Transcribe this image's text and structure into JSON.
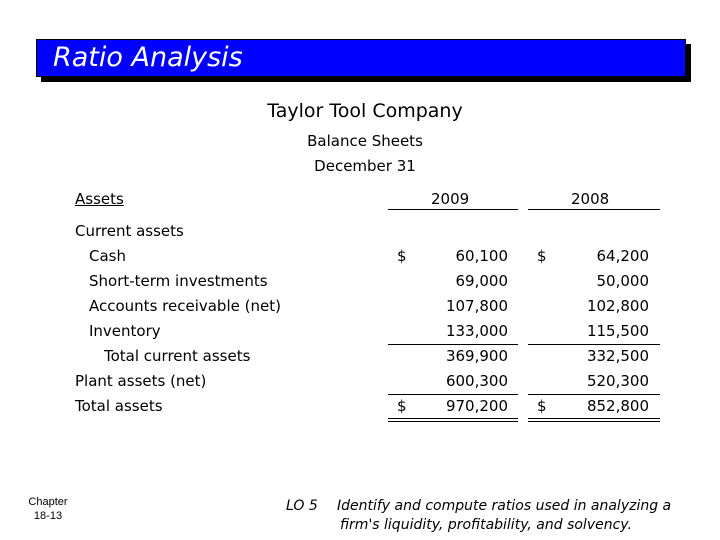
{
  "banner": {
    "title": "Ratio Analysis",
    "color": "#0000ff"
  },
  "header": {
    "company": "Taylor Tool Company",
    "statement": "Balance Sheets",
    "date": "December 31"
  },
  "table": {
    "section_label": "Assets",
    "year_2009": "2009",
    "year_2008": "2008",
    "current_assets_label": "Current assets",
    "rows": [
      {
        "label": "Cash",
        "dollar": "$",
        "v2009": "60,100",
        "v2008": "64,200"
      },
      {
        "label": "Short-term investments",
        "dollar": "",
        "v2009": "69,000",
        "v2008": "50,000"
      },
      {
        "label": "Accounts receivable (net)",
        "dollar": "",
        "v2009": "107,800",
        "v2008": "102,800"
      },
      {
        "label": "Inventory",
        "dollar": "",
        "v2009": "133,000",
        "v2008": "115,500"
      },
      {
        "label": "Total current assets",
        "dollar": "",
        "v2009": "369,900",
        "v2008": "332,500"
      },
      {
        "label": "Plant assets (net)",
        "dollar": "",
        "v2009": "600,300",
        "v2008": "520,300"
      },
      {
        "label": "Total assets",
        "dollar": "$",
        "v2009": "970,200",
        "v2008": "852,800"
      }
    ]
  },
  "footer": {
    "chapter_label": "Chapter",
    "chapter_number": "18-13",
    "lo_number": "LO 5",
    "lo_line1": "Identify and compute ratios used in analyzing a",
    "lo_line2": "firm's liquidity, profitability, and solvency."
  }
}
